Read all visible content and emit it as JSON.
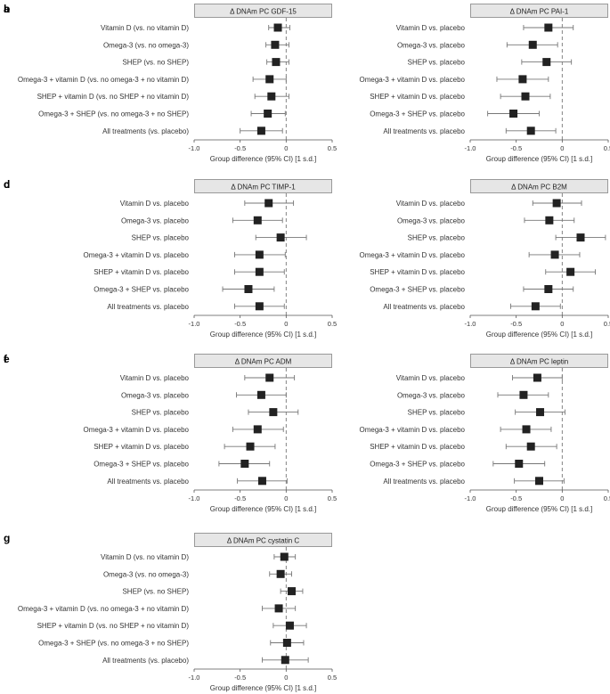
{
  "figure": {
    "xlabel": "Group difference (95% CI) [1 s.d.]",
    "ticks": [
      "-1.0",
      "-0.5",
      "0",
      "0.5"
    ]
  },
  "chart_data": [
    {
      "panel": "a",
      "type": "forest",
      "title": "Δ DNAm PC GDF-15",
      "xlim": [
        -1.0,
        0.5
      ],
      "reference_line": 0,
      "rows": [
        {
          "label": "Vitamin D (vs. no vitamin D)",
          "estimate": -0.09,
          "lower": -0.19,
          "upper": 0.04
        },
        {
          "label": "Omega-3 (vs. no omega-3)",
          "estimate": -0.12,
          "lower": -0.22,
          "upper": 0.03
        },
        {
          "label": "SHEP (vs. no SHEP)",
          "estimate": -0.11,
          "lower": -0.21,
          "upper": 0.03
        },
        {
          "label": "Omega-3 + vitamin D (vs. no omega-3 + no vitamin D)",
          "estimate": -0.18,
          "lower": -0.36,
          "upper": 0.0
        },
        {
          "label": "SHEP + vitamin D (vs. no SHEP + no vitamin D)",
          "estimate": -0.16,
          "lower": -0.34,
          "upper": 0.03
        },
        {
          "label": "Omega-3 + SHEP (vs. no omega-3 + no SHEP)",
          "estimate": -0.2,
          "lower": -0.38,
          "upper": -0.01
        },
        {
          "label": "All treatments (vs. placebo)",
          "estimate": -0.27,
          "lower": -0.5,
          "upper": -0.04
        }
      ]
    },
    {
      "panel": "b",
      "type": "forest",
      "title": "Δ DNAm PC PAI-1",
      "xlim": [
        -1.0,
        0.5
      ],
      "reference_line": 0,
      "rows": [
        {
          "label": "Vitamin D vs. placebo",
          "estimate": -0.15,
          "lower": -0.42,
          "upper": 0.12
        },
        {
          "label": "Omega-3 vs. placebo",
          "estimate": -0.32,
          "lower": -0.6,
          "upper": -0.05
        },
        {
          "label": "SHEP vs. placebo",
          "estimate": -0.17,
          "lower": -0.44,
          "upper": 0.1
        },
        {
          "label": "Omega-3 + vitamin D vs. placebo",
          "estimate": -0.43,
          "lower": -0.71,
          "upper": -0.15
        },
        {
          "label": "SHEP + vitamin D vs. placebo",
          "estimate": -0.4,
          "lower": -0.67,
          "upper": -0.13
        },
        {
          "label": "Omega-3 + SHEP vs. placebo",
          "estimate": -0.53,
          "lower": -0.81,
          "upper": -0.25
        },
        {
          "label": "All treatments vs. placebo",
          "estimate": -0.34,
          "lower": -0.61,
          "upper": -0.07
        }
      ]
    },
    {
      "panel": "c",
      "type": "forest",
      "title": "Δ DNAm PC TIMP-1",
      "xlim": [
        -1.0,
        0.5
      ],
      "reference_line": 0,
      "rows": [
        {
          "label": "Vitamin D vs. placebo",
          "estimate": -0.19,
          "lower": -0.45,
          "upper": 0.08
        },
        {
          "label": "Omega-3 vs. placebo",
          "estimate": -0.31,
          "lower": -0.58,
          "upper": -0.04
        },
        {
          "label": "SHEP vs. placebo",
          "estimate": -0.06,
          "lower": -0.33,
          "upper": 0.22
        },
        {
          "label": "Omega-3 + vitamin D vs. placebo",
          "estimate": -0.29,
          "lower": -0.56,
          "upper": -0.01
        },
        {
          "label": "SHEP + vitamin D vs. placebo",
          "estimate": -0.29,
          "lower": -0.56,
          "upper": -0.02
        },
        {
          "label": "Omega-3 + SHEP vs. placebo",
          "estimate": -0.41,
          "lower": -0.69,
          "upper": -0.13
        },
        {
          "label": "All treatments vs. placebo",
          "estimate": -0.29,
          "lower": -0.56,
          "upper": -0.02
        }
      ]
    },
    {
      "panel": "d",
      "type": "forest",
      "title": "Δ DNAm PC B2M",
      "xlim": [
        -1.0,
        0.5
      ],
      "reference_line": 0,
      "rows": [
        {
          "label": "Vitamin D vs. placebo",
          "estimate": -0.06,
          "lower": -0.32,
          "upper": 0.21
        },
        {
          "label": "Omega-3 vs. placebo",
          "estimate": -0.14,
          "lower": -0.41,
          "upper": 0.13
        },
        {
          "label": "SHEP vs. placebo",
          "estimate": 0.2,
          "lower": -0.07,
          "upper": 0.47
        },
        {
          "label": "Omega-3 + vitamin D vs. placebo",
          "estimate": -0.08,
          "lower": -0.36,
          "upper": 0.19
        },
        {
          "label": "SHEP + vitamin D vs. placebo",
          "estimate": 0.09,
          "lower": -0.18,
          "upper": 0.36
        },
        {
          "label": "Omega-3 + SHEP vs. placebo",
          "estimate": -0.15,
          "lower": -0.42,
          "upper": 0.12
        },
        {
          "label": "All treatments vs. placebo",
          "estimate": -0.29,
          "lower": -0.56,
          "upper": -0.02
        }
      ]
    },
    {
      "panel": "e",
      "type": "forest",
      "title": "Δ DNAm PC ADM",
      "xlim": [
        -1.0,
        0.5
      ],
      "reference_line": 0,
      "rows": [
        {
          "label": "Vitamin D vs. placebo",
          "estimate": -0.18,
          "lower": -0.45,
          "upper": 0.09
        },
        {
          "label": "Omega-3 vs. placebo",
          "estimate": -0.27,
          "lower": -0.54,
          "upper": 0.0
        },
        {
          "label": "SHEP vs. placebo",
          "estimate": -0.14,
          "lower": -0.41,
          "upper": 0.13
        },
        {
          "label": "Omega-3 + vitamin D vs. placebo",
          "estimate": -0.31,
          "lower": -0.58,
          "upper": -0.03
        },
        {
          "label": "SHEP + vitamin D vs. placebo",
          "estimate": -0.39,
          "lower": -0.67,
          "upper": -0.12
        },
        {
          "label": "Omega-3 + SHEP vs. placebo",
          "estimate": -0.45,
          "lower": -0.73,
          "upper": -0.18
        },
        {
          "label": "All treatments vs. placebo",
          "estimate": -0.26,
          "lower": -0.53,
          "upper": 0.01
        }
      ]
    },
    {
      "panel": "f",
      "type": "forest",
      "title": "Δ DNAm PC leptin",
      "xlim": [
        -1.0,
        0.5
      ],
      "reference_line": 0,
      "rows": [
        {
          "label": "Vitamin D vs. placebo",
          "estimate": -0.27,
          "lower": -0.54,
          "upper": 0.0
        },
        {
          "label": "Omega-3 vs. placebo",
          "estimate": -0.42,
          "lower": -0.7,
          "upper": -0.15
        },
        {
          "label": "SHEP vs. placebo",
          "estimate": -0.24,
          "lower": -0.51,
          "upper": 0.03
        },
        {
          "label": "Omega-3 + vitamin D vs. placebo",
          "estimate": -0.39,
          "lower": -0.67,
          "upper": -0.12
        },
        {
          "label": "SHEP + vitamin D vs. placebo",
          "estimate": -0.34,
          "lower": -0.61,
          "upper": -0.06
        },
        {
          "label": "Omega-3 + SHEP vs. placebo",
          "estimate": -0.47,
          "lower": -0.75,
          "upper": -0.19
        },
        {
          "label": "All treatments vs. placebo",
          "estimate": -0.25,
          "lower": -0.52,
          "upper": 0.02
        }
      ]
    },
    {
      "panel": "g",
      "type": "forest",
      "title": "Δ DNAm PC cystatin C",
      "xlim": [
        -1.0,
        0.5
      ],
      "reference_line": 0,
      "rows": [
        {
          "label": "Vitamin D (vs. no vitamin D)",
          "estimate": -0.02,
          "lower": -0.13,
          "upper": 0.1
        },
        {
          "label": "Omega-3 (vs. no omega-3)",
          "estimate": -0.06,
          "lower": -0.18,
          "upper": 0.06
        },
        {
          "label": "SHEP (vs. no SHEP)",
          "estimate": 0.06,
          "lower": -0.06,
          "upper": 0.18
        },
        {
          "label": "Omega-3 + vitamin D (vs. no omega-3 + no vitamin D)",
          "estimate": -0.08,
          "lower": -0.26,
          "upper": 0.1
        },
        {
          "label": "SHEP + vitamin D (vs. no SHEP + no vitamin D)",
          "estimate": 0.04,
          "lower": -0.14,
          "upper": 0.22
        },
        {
          "label": "Omega-3 + SHEP (vs. no omega-3 + no SHEP)",
          "estimate": 0.01,
          "lower": -0.17,
          "upper": 0.19
        },
        {
          "label": "All treatments (vs. placebo)",
          "estimate": -0.01,
          "lower": -0.26,
          "upper": 0.24
        }
      ]
    }
  ]
}
